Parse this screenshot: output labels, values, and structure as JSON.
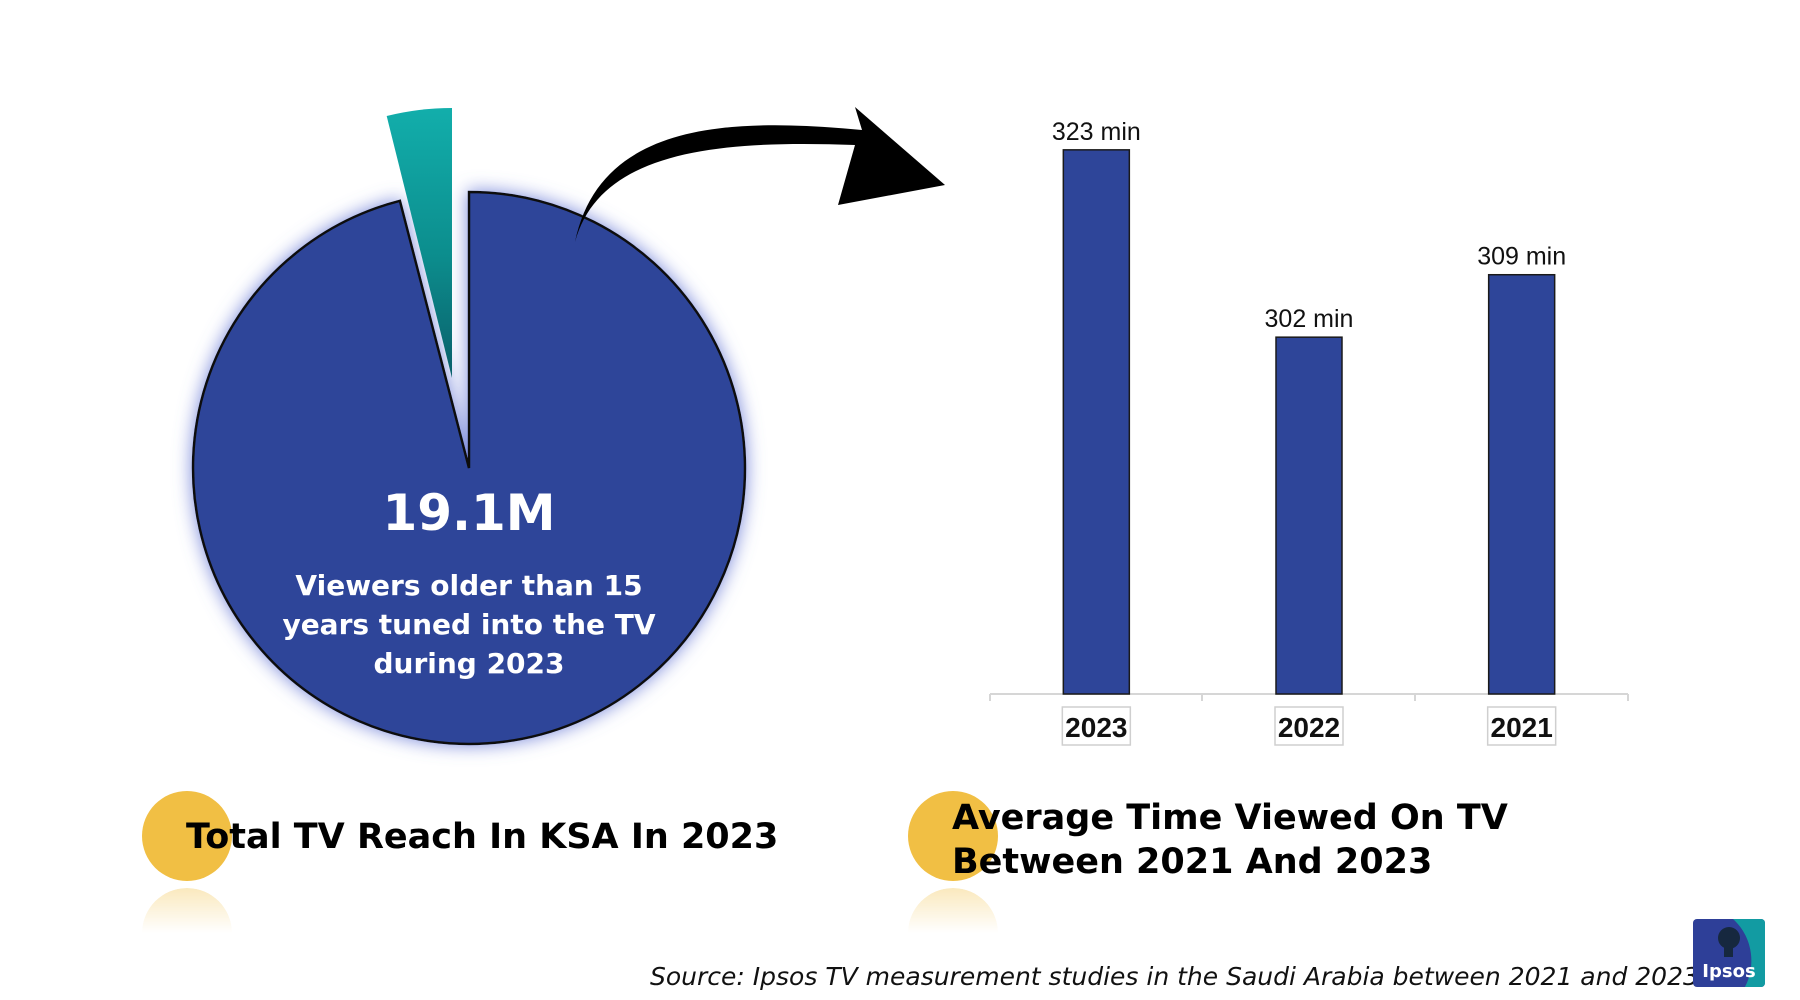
{
  "colors": {
    "bar": "#2e4599",
    "pie_main": "#2e4599",
    "pie_slice": "#10a5a3",
    "dot": "#f1bf44",
    "arrow": "#000000",
    "logo_bg": "#2e3f98",
    "logo_accent": "#10a5a3"
  },
  "pie_chart": {
    "headline_value": "19.1M",
    "description": "Viewers older than 15 years tuned into the TV during 2023",
    "description_lines": [
      "Viewers older than 15",
      "years tuned into the TV",
      "during 2023"
    ]
  },
  "chart_data": {
    "type": "bar",
    "categories": [
      "2023",
      "2022",
      "2021"
    ],
    "values": [
      323,
      302,
      309
    ],
    "unit": "min",
    "data_labels": [
      "323 min",
      "302 min",
      "309 min"
    ],
    "ylim": [
      262,
      325
    ],
    "grid": false,
    "legend": "none"
  },
  "captions": {
    "left": "Total TV Reach In KSA In 2023",
    "right_line1": "Average Time Viewed On TV",
    "right_line2": "Between 2021 And 2023"
  },
  "source": "Source: Ipsos TV measurement studies in the Saudi Arabia between 2021 and 2023",
  "logo": {
    "text": "Ipsos",
    "icon": "ipsos-head-icon"
  }
}
